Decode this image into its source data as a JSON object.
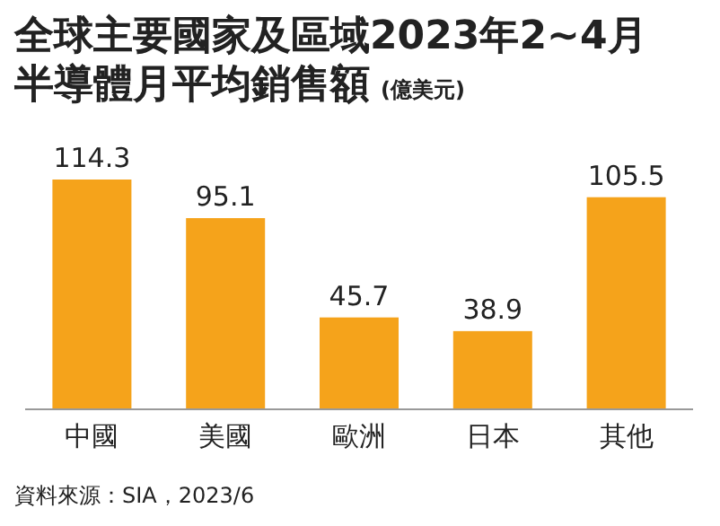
{
  "chart_data": {
    "type": "bar",
    "title": "全球主要國家及區域2023年2~4月半導體月平均銷售額",
    "subtitle": "(億美元)",
    "categories": [
      "中國",
      "美國",
      "歐洲",
      "日本",
      "其他"
    ],
    "values": [
      114.3,
      95.1,
      45.7,
      38.9,
      105.5
    ],
    "color": "#f5a31b",
    "data_labels": true,
    "annotations": [
      "資料來源：SIA，2023/6"
    ]
  }
}
